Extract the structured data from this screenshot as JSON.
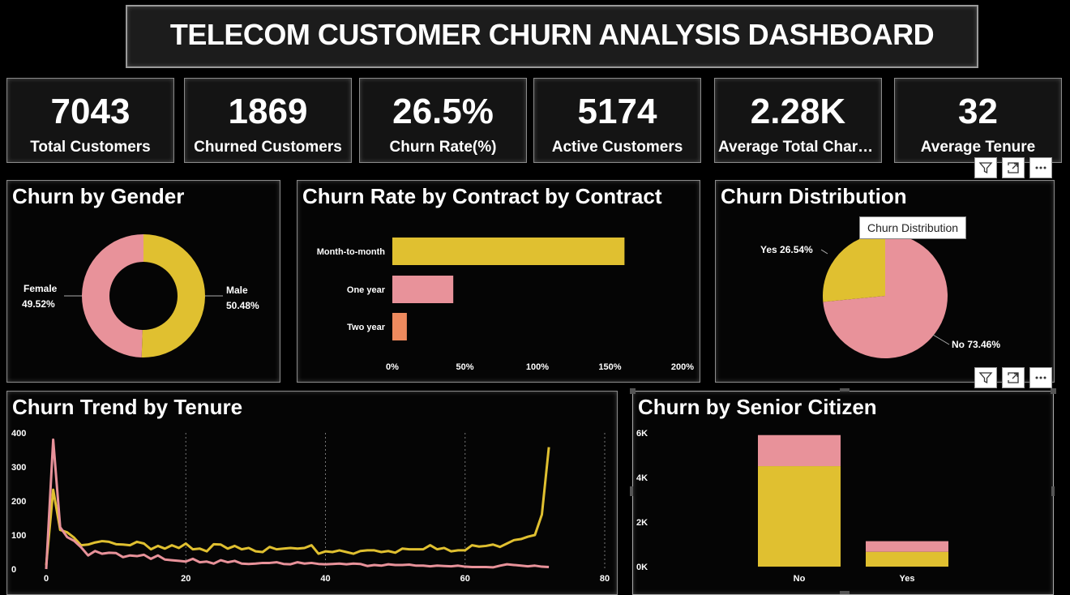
{
  "dashboard": {
    "title": "TELECOM CUSTOMER CHURN ANALYSIS DASHBOARD"
  },
  "kpis": [
    {
      "value": "7043",
      "label": "Total Customers"
    },
    {
      "value": "1869",
      "label": "Churned Customers"
    },
    {
      "value": "26.5%",
      "label": "Churn Rate(%)"
    },
    {
      "value": "5174",
      "label": "Active Customers"
    },
    {
      "value": "2.28K",
      "label": "Average Total Charges"
    },
    {
      "value": "32",
      "label": "Average Tenure"
    }
  ],
  "colors": {
    "yellow": "#e0c030",
    "pink": "#e8929a",
    "orange": "#ee8a5e",
    "background": "#000000"
  },
  "tooltip": {
    "text": "Churn Distribution"
  },
  "visual_header_icons": [
    "filter-icon",
    "focus-mode-icon",
    "more-options-icon"
  ],
  "chart_data": [
    {
      "id": "gender",
      "type": "pie",
      "title": "Churn by Gender",
      "donut": true,
      "slices": [
        {
          "name": "Male",
          "value": 50.48,
          "label": "50.48%",
          "color": "#e0c030"
        },
        {
          "name": "Female",
          "value": 49.52,
          "label": "49.52%",
          "color": "#e8929a"
        }
      ]
    },
    {
      "id": "contract",
      "type": "bar",
      "orientation": "horizontal",
      "title": "Churn Rate by Contract by Contract",
      "categories": [
        "Month-to-month",
        "One year",
        "Two year"
      ],
      "values": [
        160,
        42,
        10
      ],
      "colors": [
        "#e0c030",
        "#e8929a",
        "#ee8a5e"
      ],
      "xlim": [
        0,
        200
      ],
      "xticks": [
        "0%",
        "50%",
        "100%",
        "150%",
        "200%"
      ]
    },
    {
      "id": "distribution",
      "type": "pie",
      "title": "Churn Distribution",
      "slices": [
        {
          "name": "No",
          "value": 73.46,
          "label": "No 73.46%",
          "color": "#e8929a"
        },
        {
          "name": "Yes",
          "value": 26.54,
          "label": "Yes 26.54%",
          "color": "#e0c030"
        }
      ]
    },
    {
      "id": "tenure",
      "type": "line",
      "title": "Churn Trend by Tenure",
      "xlim": [
        0,
        80
      ],
      "ylim": [
        0,
        400
      ],
      "xticks": [
        "0",
        "20",
        "40",
        "60",
        "80"
      ],
      "yticks": [
        "0",
        "100",
        "200",
        "300",
        "400"
      ],
      "x": [
        0,
        1,
        2,
        3,
        4,
        5,
        6,
        7,
        8,
        9,
        10,
        11,
        12,
        13,
        14,
        15,
        16,
        17,
        18,
        19,
        20,
        21,
        22,
        23,
        24,
        25,
        26,
        27,
        28,
        29,
        30,
        31,
        32,
        33,
        34,
        35,
        36,
        37,
        38,
        39,
        40,
        41,
        42,
        43,
        44,
        45,
        46,
        47,
        48,
        49,
        50,
        51,
        52,
        53,
        54,
        55,
        56,
        57,
        58,
        59,
        60,
        61,
        62,
        63,
        64,
        65,
        66,
        67,
        68,
        69,
        70,
        71,
        72
      ],
      "series": [
        {
          "color": "#e0c030",
          "values": [
            11,
            233,
            115,
            108,
            92,
            70,
            72,
            78,
            82,
            80,
            73,
            72,
            70,
            80,
            75,
            58,
            68,
            60,
            70,
            62,
            75,
            58,
            60,
            52,
            73,
            72,
            60,
            68,
            58,
            62,
            52,
            50,
            65,
            58,
            60,
            62,
            60,
            62,
            70,
            45,
            52,
            50,
            55,
            50,
            45,
            53,
            55,
            55,
            50,
            53,
            48,
            60,
            58,
            58,
            58,
            70,
            58,
            62,
            52,
            55,
            55,
            70,
            66,
            68,
            72,
            65,
            75,
            85,
            88,
            95,
            100,
            160,
            358
          ]
        },
        {
          "color": "#e8929a",
          "values": [
            0,
            380,
            123,
            94,
            83,
            64,
            40,
            53,
            45,
            48,
            47,
            35,
            40,
            38,
            42,
            30,
            40,
            28,
            26,
            24,
            22,
            30,
            20,
            22,
            16,
            26,
            20,
            24,
            16,
            15,
            16,
            18,
            18,
            20,
            15,
            14,
            20,
            16,
            18,
            15,
            14,
            15,
            16,
            14,
            16,
            15,
            9,
            12,
            10,
            14,
            12,
            12,
            13,
            10,
            10,
            8,
            10,
            9,
            8,
            10,
            7,
            6,
            6,
            6,
            5,
            10,
            14,
            12,
            10,
            8,
            10,
            7,
            6
          ]
        }
      ]
    },
    {
      "id": "senior",
      "type": "bar",
      "stacked": true,
      "title": "Churn by Senior Citizen",
      "categories": [
        "No",
        "Yes"
      ],
      "series": [
        {
          "color": "#e0c030",
          "values": [
            4508,
            666
          ]
        },
        {
          "color": "#e8929a",
          "values": [
            1393,
            476
          ]
        }
      ],
      "ylim": [
        0,
        6000
      ],
      "yticks": [
        "0K",
        "2K",
        "4K",
        "6K"
      ]
    }
  ]
}
